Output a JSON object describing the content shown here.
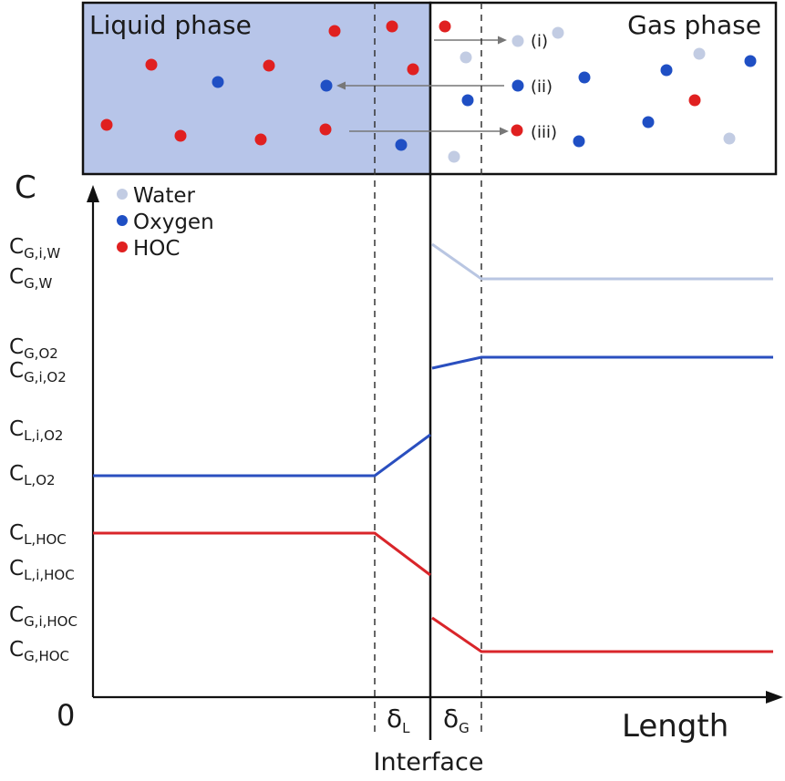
{
  "phases": {
    "liquid": {
      "label": "Liquid phase",
      "fill": "#b7c5e9"
    },
    "gas": {
      "label": "Gas phase",
      "fill": "#ffffff"
    }
  },
  "transfer_labels": [
    "(i)",
    "(ii)",
    "(iii)"
  ],
  "axes": {
    "y_label": "C",
    "origin_label": "0",
    "x_label": "Length",
    "interface_label": "Interface",
    "delta_L": {
      "main": "δ",
      "sub": "L"
    },
    "delta_G": {
      "main": "δ",
      "sub": "G"
    }
  },
  "legend": [
    {
      "name": "Water",
      "color": "#c2cce3"
    },
    {
      "name": "Oxygen",
      "color": "#1f4fc4"
    },
    {
      "name": "HOC",
      "color": "#e02020"
    }
  ],
  "y_tick_labels": [
    {
      "id": "cgiw",
      "main": "C",
      "sub": "G,i,W"
    },
    {
      "id": "cgw",
      "main": "C",
      "sub": "G,W"
    },
    {
      "id": "cgo2",
      "main": "C",
      "sub": "G,O2"
    },
    {
      "id": "cgio2",
      "main": "C",
      "sub": "G,i,O2"
    },
    {
      "id": "clio2",
      "main": "C",
      "sub": "L,i,O2"
    },
    {
      "id": "clo2",
      "main": "C",
      "sub": "L,O2"
    },
    {
      "id": "clhoc",
      "main": "C",
      "sub": "L,HOC"
    },
    {
      "id": "clihoc",
      "main": "C",
      "sub": "L,i,HOC"
    },
    {
      "id": "cgihoc",
      "main": "C",
      "sub": "G,i,HOC"
    },
    {
      "id": "cghoc",
      "main": "C",
      "sub": "G,HOC"
    }
  ],
  "colors": {
    "water_line": "#b9c6e2",
    "oxygen_line": "#2a4fbf",
    "hoc_line": "#d9252a",
    "water_dot": "#c2cce3",
    "oxygen_dot": "#1f4fc4",
    "hoc_dot": "#e02020",
    "axis": "#111111",
    "arrow": "#777777"
  }
}
